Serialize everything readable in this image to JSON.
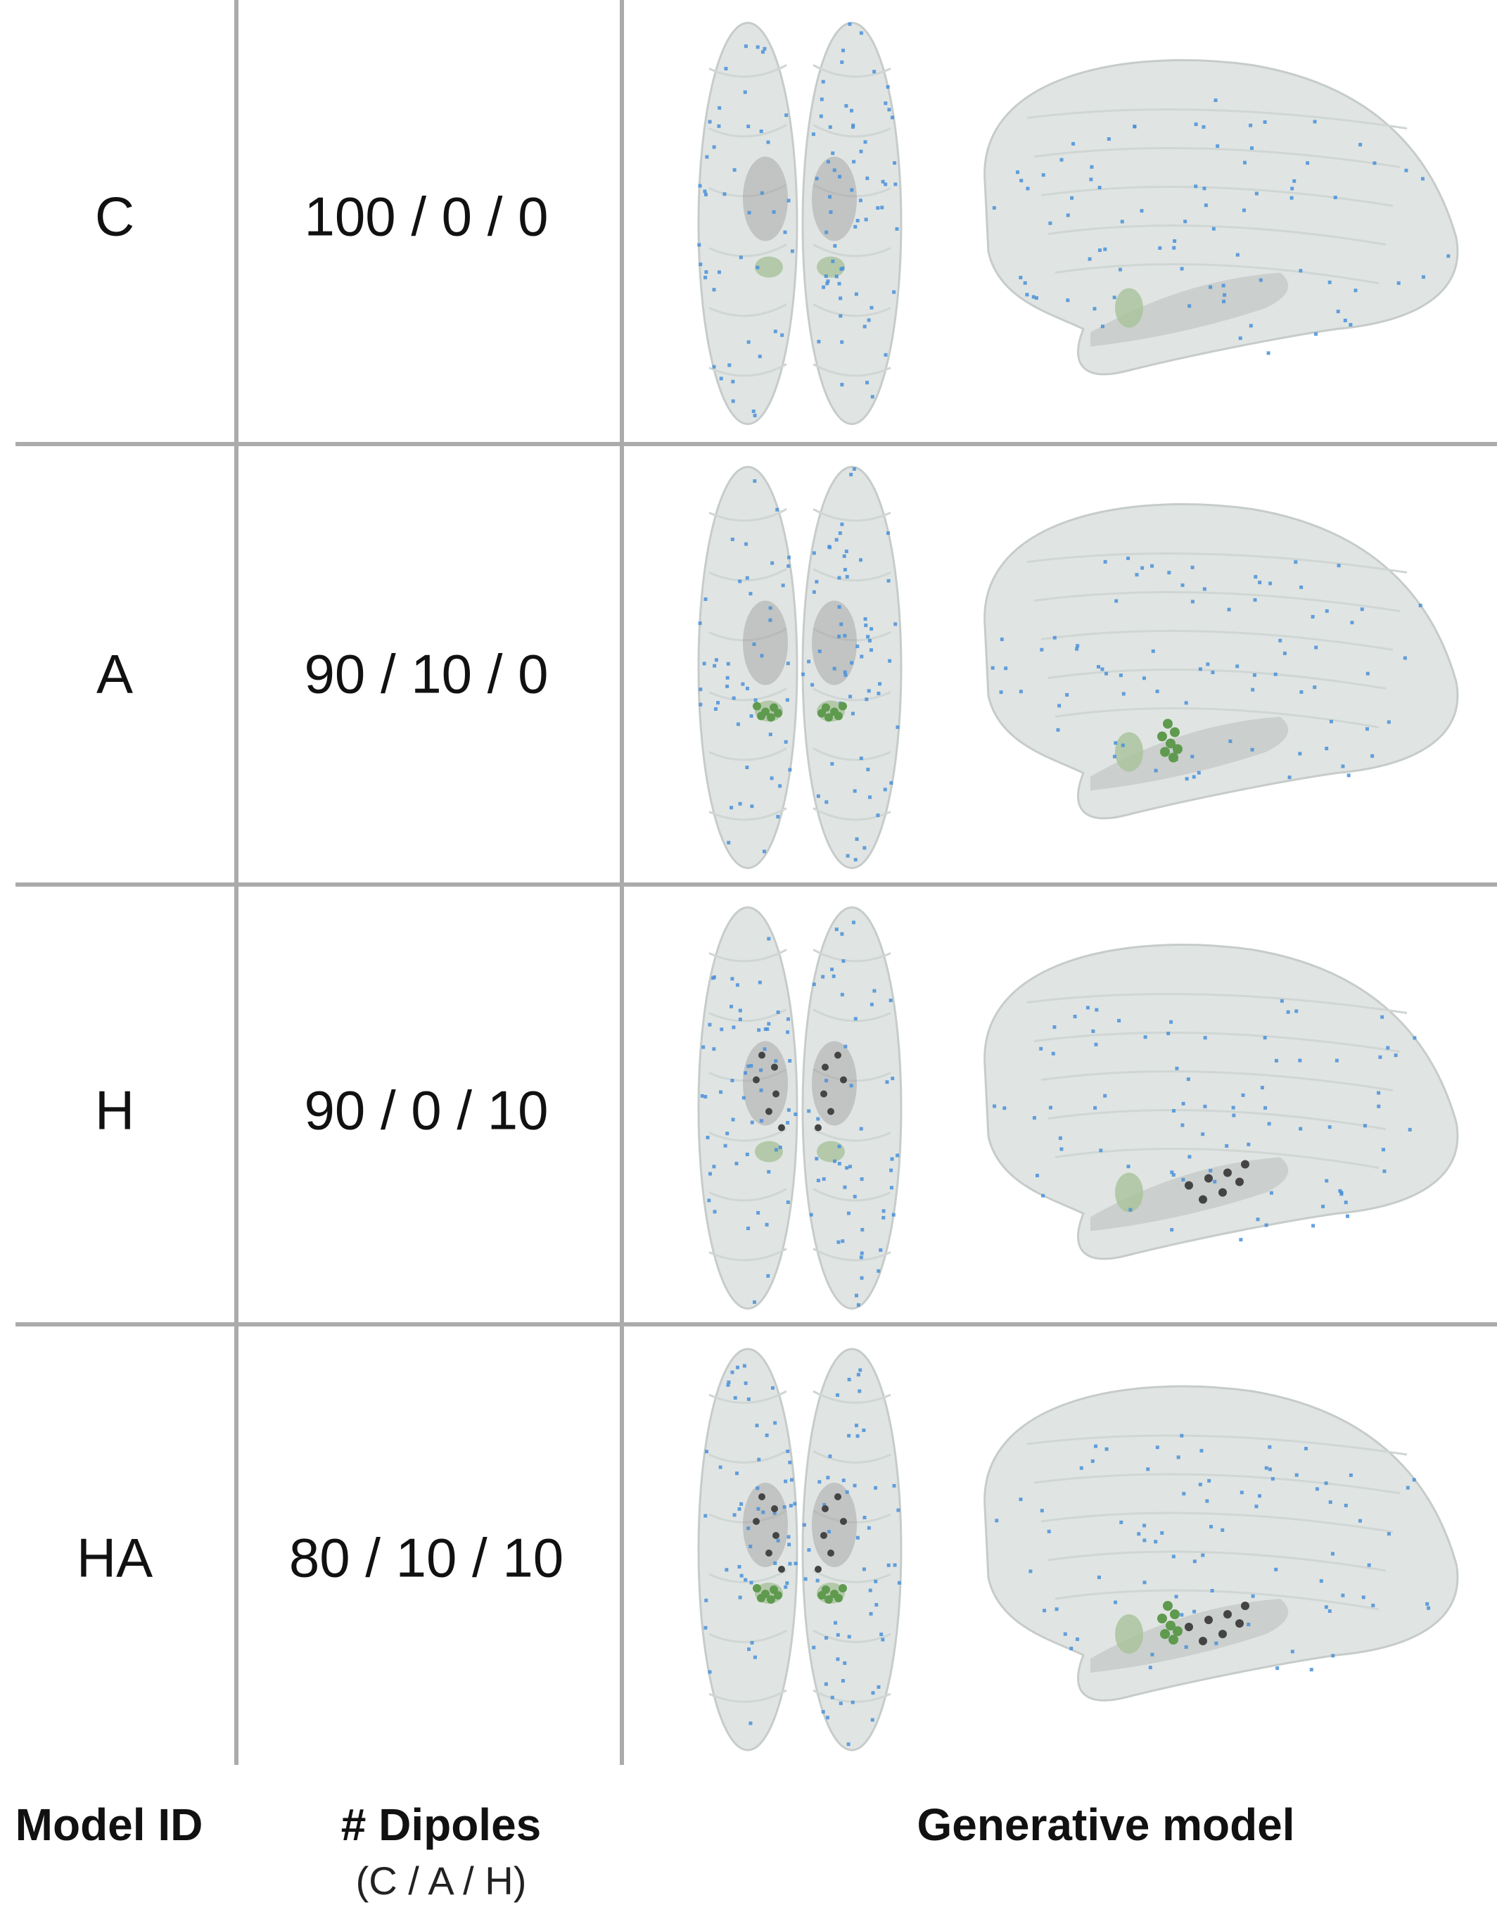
{
  "headers": {
    "model_id": "Model ID",
    "dipoles": "# Dipoles",
    "dipoles_sub": "(C / A / H)",
    "generative": "Generative model"
  },
  "rows": [
    {
      "model_id": "C",
      "dipoles": "100 / 0 / 0",
      "green_cluster": false,
      "dark_cluster": false
    },
    {
      "model_id": "A",
      "dipoles": "90 / 10 / 0",
      "green_cluster": true,
      "dark_cluster": false
    },
    {
      "model_id": "H",
      "dipoles": "90 / 0 / 10",
      "green_cluster": false,
      "dark_cluster": true
    },
    {
      "model_id": "HA",
      "dipoles": "80 / 10 / 10",
      "green_cluster": true,
      "dark_cluster": true
    }
  ],
  "colors": {
    "grid": "#ababab",
    "brain_fill": "#dfe4e2",
    "brain_edge": "#c3cac7",
    "cortical_dipole": "#4a90d9",
    "amygdala_region": "#a8c29a",
    "amygdala_dipole": "#5f9a4f",
    "hippocampus_dipole": "#444444",
    "deep_region": "#9c9c9c"
  }
}
